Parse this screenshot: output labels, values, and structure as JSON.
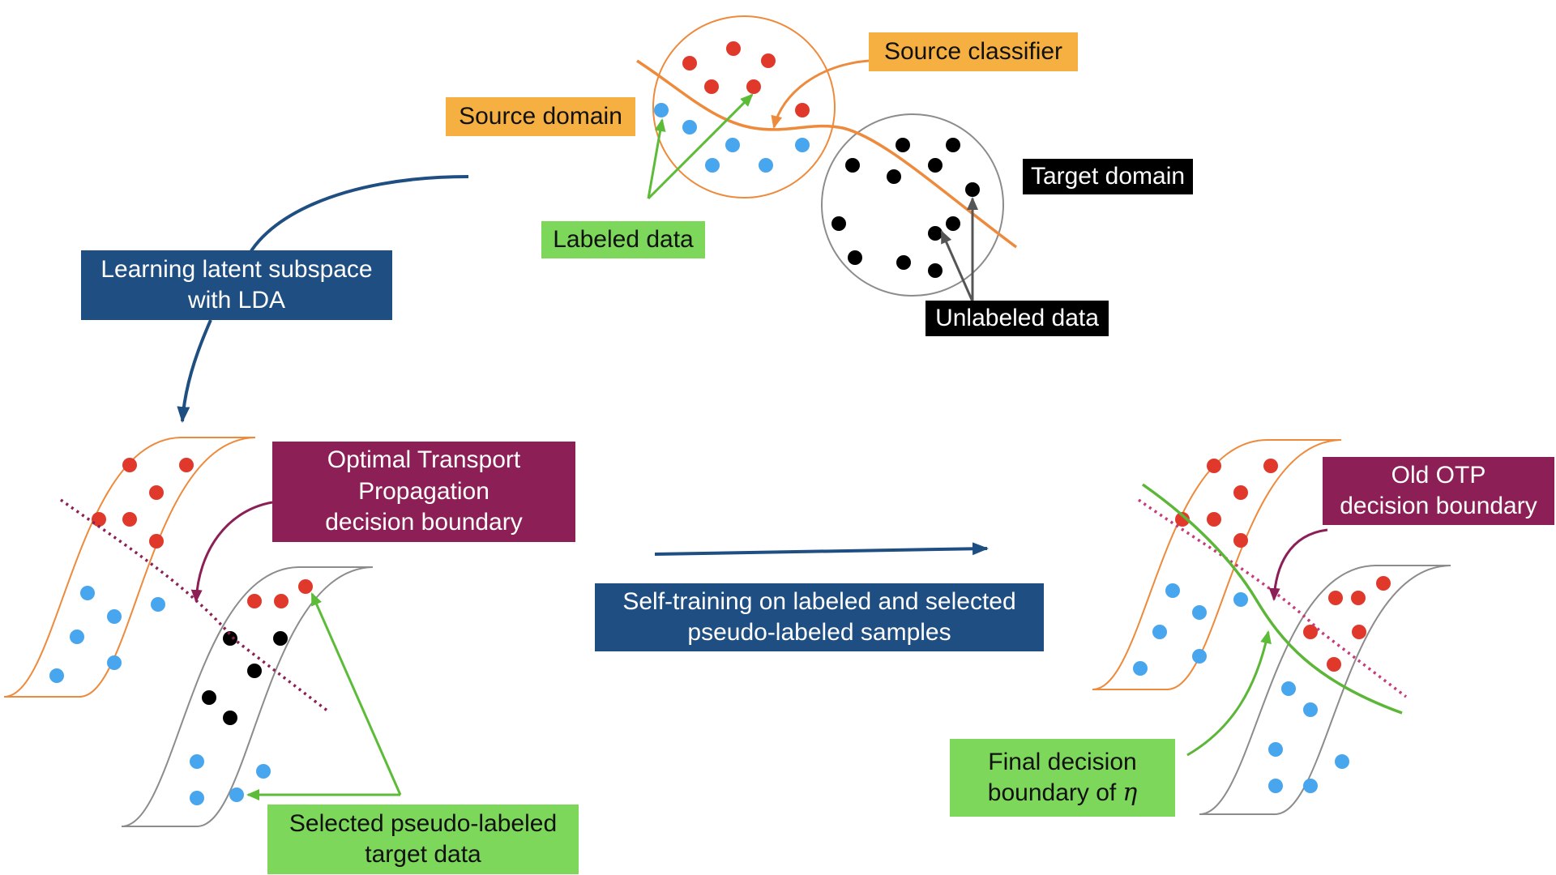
{
  "colors": {
    "red_class": "#e0392b",
    "blue_class": "#48a6ee",
    "unlabeled": "#000000",
    "source_orange": "#ee8a3c",
    "target_grey": "#8c8c8c",
    "arrow_green": "#5cbc38",
    "process_blue": "#1f4f82",
    "boundary_purple": "#8c1f55",
    "new_boundary_green": "#5cb638",
    "highlight_orange": "#f5b041",
    "highlight_green": "#7cd75a"
  },
  "labels": {
    "source_domain": "Source domain",
    "source_classifier": "Source classifier",
    "target_domain": "Target domain",
    "labeled_data": "Labeled data",
    "unlabeled_data": "Unlabeled data",
    "learning_lda": "Learning latent subspace\nwith LDA",
    "otp_boundary": "Optimal Transport\nPropagation\ndecision boundary",
    "self_training": "Self-training on labeled and selected\npseudo-labeled samples",
    "selected_pseudo": "Selected pseudo-labeled\ntarget data",
    "old_otp": "Old OTP\ndecision boundary",
    "final_boundary": "Final decision\nboundary of",
    "final_boundary_symbol": "η"
  }
}
